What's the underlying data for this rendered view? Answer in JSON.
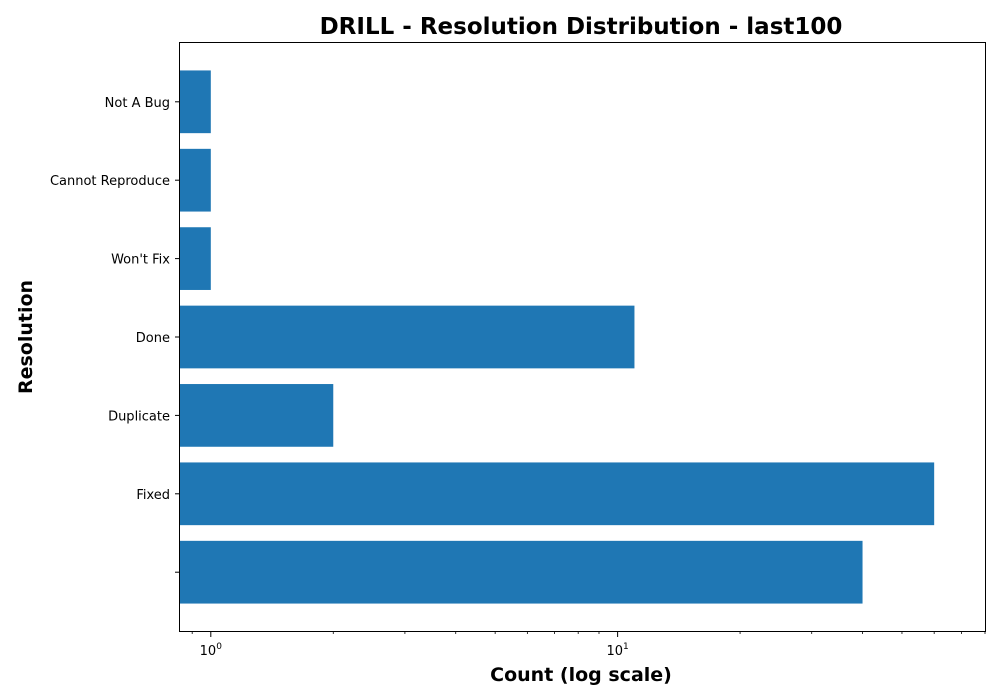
{
  "chart_data": {
    "type": "bar",
    "orientation": "horizontal",
    "title": "DRILL - Resolution Distribution - last100",
    "xlabel": "Count (log scale)",
    "ylabel": "Resolution",
    "x_scale": "log",
    "xlim": [
      0.84,
      80
    ],
    "grid": false,
    "legend": "none",
    "bar_color": "#1f77b4",
    "x_ticks": [
      {
        "value": 1,
        "base": "10",
        "exponent": "0"
      },
      {
        "value": 10,
        "base": "10",
        "exponent": "1"
      }
    ],
    "categories": [
      "",
      "Fixed",
      "Duplicate",
      "Done",
      "Won't Fix",
      "Cannot Reproduce",
      "Not A Bug"
    ],
    "values": [
      40,
      60,
      2,
      11,
      1,
      1,
      1
    ]
  }
}
